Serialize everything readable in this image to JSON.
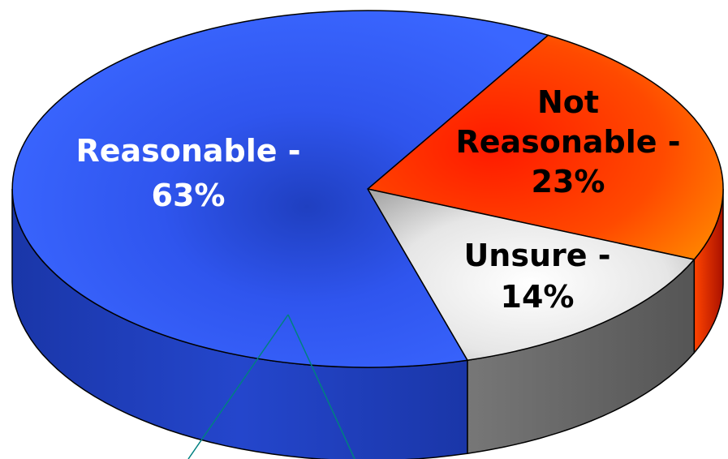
{
  "chart_data": {
    "type": "pie",
    "title": "",
    "style": "3d",
    "slices": [
      {
        "name": "Reasonable",
        "label_line1": "Reasonable -",
        "label_line2": "63%",
        "value": 63,
        "color": "#3366ff",
        "label_color": "#ffffff"
      },
      {
        "name": "Not Reasonable",
        "label_line1": "Not",
        "label_line2": "Reasonable -",
        "label_line3": "23%",
        "value": 23,
        "color": "#ff3300",
        "label_color": "#000000"
      },
      {
        "name": "Unsure",
        "label_line1": "Unsure -",
        "label_line2": "14%",
        "value": 14,
        "color": "#d9d9d9",
        "label_color": "#000000"
      }
    ],
    "callout_line_color": "#008080"
  }
}
